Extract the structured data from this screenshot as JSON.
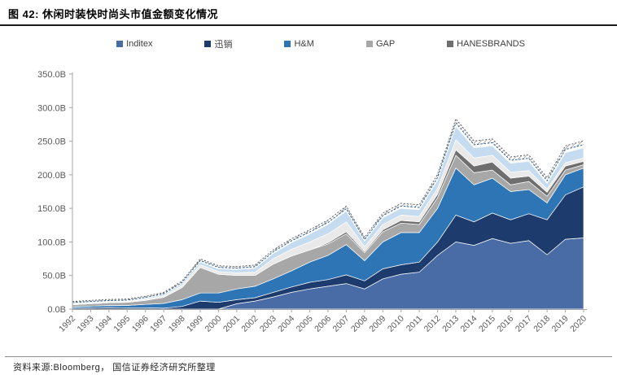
{
  "header": {
    "title": "图 42: 休闲时装快时尚头市值金额变化情况"
  },
  "footer": {
    "source": "资料来源:Bloomberg， 国信证券经济研究所整理"
  },
  "chart_data": {
    "type": "area",
    "stacked": true,
    "title": "休闲时装快时尚头市值金额变化情况",
    "xlabel": "",
    "ylabel": "",
    "grid": false,
    "legend_position": "top",
    "x": [
      1992,
      1993,
      1994,
      1995,
      1996,
      1997,
      1998,
      1999,
      2000,
      2001,
      2002,
      2003,
      2004,
      2005,
      2006,
      2007,
      2008,
      2009,
      2010,
      2011,
      2012,
      2013,
      2014,
      2015,
      2016,
      2017,
      2018,
      2019,
      2020
    ],
    "y_axis": {
      "min": 0,
      "max": 350,
      "step": 50,
      "unit": "B",
      "ticks": [
        "0.0B",
        "50.0B",
        "100.0B",
        "150.0B",
        "200.0B",
        "250.0B",
        "300.0B",
        "350.0B"
      ]
    },
    "series": [
      {
        "name": "Inditex",
        "color": "#4a6ca6",
        "in_legend": true,
        "values": [
          0,
          0,
          0,
          0,
          0,
          0,
          0,
          0,
          0,
          8,
          12,
          18,
          25,
          30,
          34,
          38,
          30,
          45,
          52,
          55,
          80,
          100,
          95,
          105,
          98,
          102,
          81,
          104,
          106
        ]
      },
      {
        "name": "迅销",
        "color": "#1d3c6d",
        "in_legend": true,
        "values": [
          1.5,
          2,
          2.5,
          2,
          2,
          1.5,
          4,
          12,
          10,
          6,
          5,
          7,
          8,
          10,
          10,
          13,
          12,
          15,
          14,
          15,
          20,
          40,
          35,
          38,
          35,
          40,
          52,
          66,
          76
        ]
      },
      {
        "name": "H&M",
        "color": "#2e75b6",
        "in_legend": true,
        "values": [
          2,
          2.5,
          3,
          3.5,
          5,
          7,
          10,
          12,
          14,
          16,
          17,
          20,
          24,
          30,
          36,
          45,
          30,
          40,
          48,
          44,
          50,
          70,
          55,
          52,
          42,
          36,
          25,
          30,
          28
        ]
      },
      {
        "name": "GAP",
        "color": "#a7a7a7",
        "in_legend": true,
        "values": [
          3,
          3.5,
          4,
          4.5,
          6,
          9,
          18,
          38,
          28,
          20,
          16,
          22,
          22,
          18,
          17,
          16,
          12,
          15,
          14,
          12,
          16,
          19,
          18,
          12,
          10,
          12,
          10,
          7,
          5
        ]
      },
      {
        "name": "HANESBRANDS",
        "color": "#6e6e6e",
        "in_legend": true,
        "values": [
          0,
          0,
          0,
          0,
          0,
          0,
          0,
          0,
          0,
          0,
          0,
          0,
          0,
          0,
          2,
          3,
          2,
          3,
          4,
          4,
          5,
          8,
          10,
          12,
          10,
          8,
          6,
          6,
          5
        ]
      },
      {
        "name": "unlabeled-light-gray",
        "color": "#e9e9e9",
        "in_legend": false,
        "values": [
          1,
          1,
          1,
          1,
          1.5,
          2,
          3,
          4,
          4,
          4,
          5,
          8,
          10,
          12,
          13,
          15,
          7,
          8,
          8,
          8,
          9,
          15,
          12,
          10,
          9,
          8,
          5,
          5,
          5
        ]
      },
      {
        "name": "unlabeled-pale-blue",
        "color": "#c5dcf0",
        "in_legend": false,
        "values": [
          1,
          1,
          1,
          1,
          1.5,
          2,
          3,
          4,
          4,
          5,
          6,
          8,
          10,
          12,
          14,
          16,
          8,
          10,
          10,
          10,
          12,
          20,
          15,
          14,
          13,
          14,
          8,
          15,
          15
        ]
      }
    ],
    "unlabeled_top_decoration": "several very thin unlabeled series rendered as dashed outlines and a diagonal-hatched band riding on top of the stack",
    "style": {
      "axis_color": "#a6a6a6",
      "tick_label_color": "#595959",
      "dash_stroke_blue": "#2c5d8f",
      "dash_stroke_dark": "#555555",
      "hatch_line_color": "#8c8c8c",
      "layer_separator": "#ffffff"
    }
  }
}
